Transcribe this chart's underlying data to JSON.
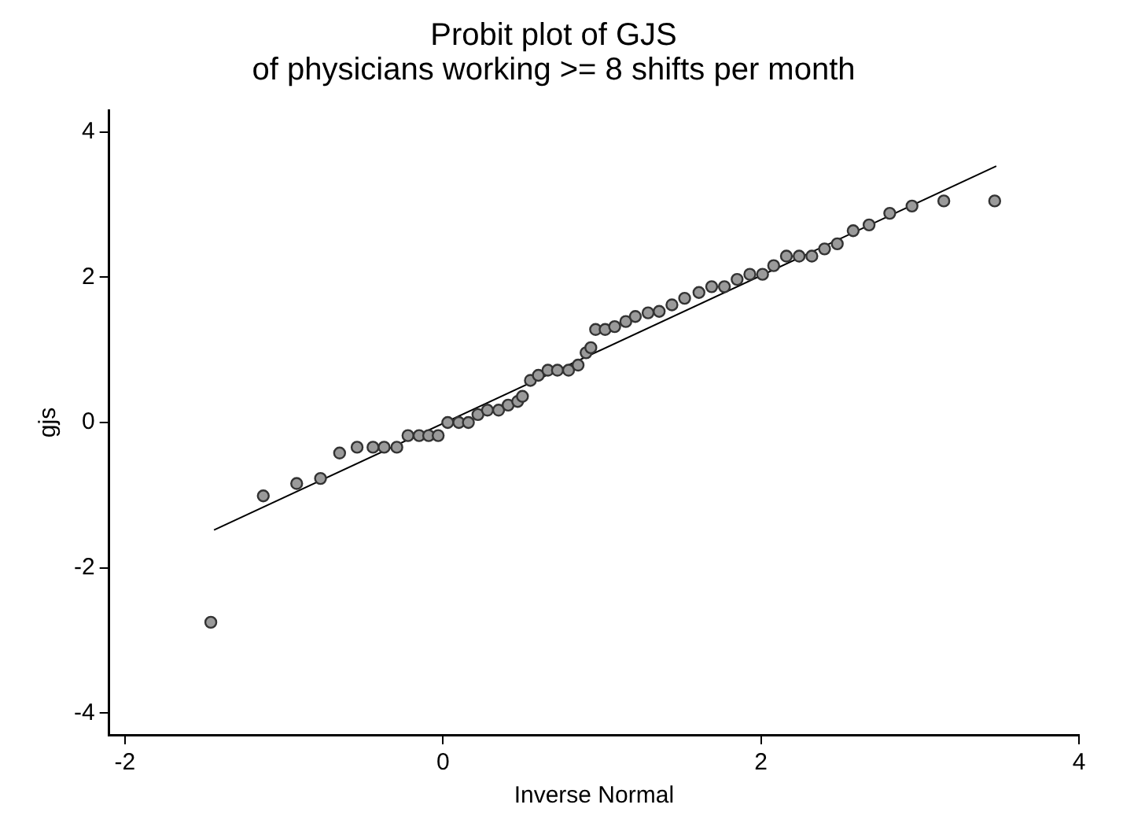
{
  "chart_data": {
    "type": "scatter",
    "title": [
      "Probit plot of GJS",
      "of physicians working >= 8 shifts per month"
    ],
    "xlabel": "Inverse Normal",
    "ylabel": "gjs",
    "xlim": [
      -2.1,
      4.0
    ],
    "xticks": [
      -2,
      0,
      2,
      4
    ],
    "ylim": [
      -4.3,
      4.3
    ],
    "yticks": [
      -4,
      -2,
      0,
      2,
      4
    ],
    "grid": false,
    "legend": false,
    "series": [
      {
        "marker": "circle",
        "color": "#9a9a9a",
        "x": [
          -1.46,
          -1.13,
          -0.92,
          -0.77,
          -0.65,
          -0.54,
          -0.44,
          -0.37,
          -0.29,
          -0.22,
          -0.15,
          -0.09,
          -0.03,
          0.03,
          0.1,
          0.16,
          0.22,
          0.28,
          0.35,
          0.41,
          0.47,
          0.5,
          0.55,
          0.6,
          0.66,
          0.72,
          0.79,
          0.85,
          0.9,
          0.93,
          0.96,
          1.02,
          1.08,
          1.15,
          1.21,
          1.29,
          1.36,
          1.44,
          1.52,
          1.61,
          1.69,
          1.77,
          1.85,
          1.93,
          2.01,
          2.08,
          2.16,
          2.24,
          2.32,
          2.4,
          2.48,
          2.58,
          2.68,
          2.81,
          2.95,
          3.15,
          3.47
        ],
        "values": [
          -2.75,
          -1.01,
          -0.84,
          -0.77,
          -0.42,
          -0.34,
          -0.34,
          -0.34,
          -0.34,
          -0.18,
          -0.18,
          -0.18,
          -0.18,
          0.0,
          0.0,
          0.0,
          0.11,
          0.17,
          0.17,
          0.24,
          0.29,
          0.36,
          0.58,
          0.65,
          0.72,
          0.72,
          0.72,
          0.79,
          0.96,
          1.03,
          1.28,
          1.28,
          1.32,
          1.39,
          1.46,
          1.51,
          1.53,
          1.62,
          1.71,
          1.79,
          1.87,
          1.87,
          1.97,
          2.04,
          2.04,
          2.16,
          2.29,
          2.29,
          2.29,
          2.39,
          2.46,
          2.64,
          2.72,
          2.88,
          2.98,
          3.05,
          3.05
        ]
      },
      {
        "type": "line",
        "marker": "none",
        "color": "#000000",
        "x": [
          -1.44,
          3.48
        ],
        "values": [
          -1.48,
          3.53
        ]
      }
    ]
  }
}
